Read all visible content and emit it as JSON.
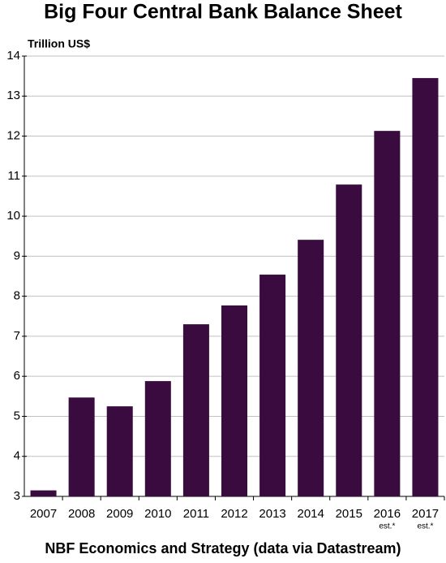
{
  "chart_data": {
    "type": "bar",
    "title": "Big Four Central Bank Balance Sheet",
    "y_label": "Trillion US$",
    "footer": "NBF Economics and Strategy (data via Datastream)",
    "categories": [
      "2007",
      "2008",
      "2009",
      "2010",
      "2011",
      "2012",
      "2013",
      "2014",
      "2015",
      "2016",
      "2017"
    ],
    "category_notes": [
      null,
      null,
      null,
      null,
      null,
      null,
      null,
      null,
      null,
      "est.*",
      "est.*"
    ],
    "values": [
      3.15,
      5.47,
      5.25,
      5.88,
      7.3,
      7.77,
      8.54,
      9.41,
      10.79,
      12.13,
      13.45
    ],
    "color": "#3a0b3e",
    "ylim": [
      3,
      14
    ],
    "yticks": [
      3,
      4,
      5,
      6,
      7,
      8,
      9,
      10,
      11,
      12,
      13,
      14
    ],
    "grid": true
  }
}
